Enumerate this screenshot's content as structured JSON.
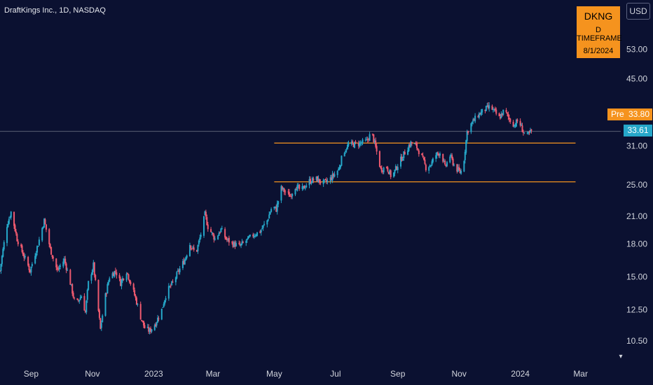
{
  "header": {
    "title": "DraftKings Inc., 1D, NASDAQ"
  },
  "ticker_box": {
    "symbol": "DKNG",
    "timeframe": "D TIMEFRAME",
    "date": "8/1/2024"
  },
  "currency_button": "USD",
  "price_labels": {
    "pre_label": "Pre",
    "pre_value": "33.80",
    "last_value": "33.61"
  },
  "colors": {
    "background": "#0b1131",
    "up": "#26a7c9",
    "down": "#ef5a6f",
    "level": "#f5931e",
    "accent": "#f5931e"
  },
  "chart_data": {
    "type": "candlestick",
    "y_scale": "log",
    "ylim": [
      9.8,
      62
    ],
    "y_ticks": [
      "53.00",
      "45.00",
      "31.00",
      "25.00",
      "21.00",
      "18.00",
      "15.00",
      "12.50",
      "10.50"
    ],
    "x_ticks": [
      "Sep",
      "Nov",
      "2023",
      "Mar",
      "May",
      "Jul",
      "Sep",
      "Nov",
      "2024",
      "Mar"
    ],
    "x_range": [
      "2022-08-01",
      "2024-04-10"
    ],
    "horizontal_levels": [
      {
        "value": 31.5,
        "from": "2023-05-01",
        "to": "2024-02-25"
      },
      {
        "value": 25.4,
        "from": "2023-05-01",
        "to": "2024-02-25"
      }
    ],
    "pre_market_price": 33.8,
    "last_price": 33.61,
    "price_path": [
      [
        "2022-08-01",
        15.5
      ],
      [
        "2022-08-08",
        20
      ],
      [
        "2022-08-12",
        21.5
      ],
      [
        "2022-08-18",
        18.5
      ],
      [
        "2022-08-24",
        17
      ],
      [
        "2022-08-31",
        15.5
      ],
      [
        "2022-09-08",
        18
      ],
      [
        "2022-09-14",
        20.5
      ],
      [
        "2022-09-20",
        17.5
      ],
      [
        "2022-09-27",
        15.5
      ],
      [
        "2022-10-04",
        16.5
      ],
      [
        "2022-10-10",
        14.5
      ],
      [
        "2022-10-15",
        12.8
      ],
      [
        "2022-10-21",
        13.5
      ],
      [
        "2022-10-25",
        12.3
      ],
      [
        "2022-10-28",
        14.5
      ],
      [
        "2022-11-02",
        16
      ],
      [
        "2022-11-06",
        13
      ],
      [
        "2022-11-09",
        11.2
      ],
      [
        "2022-11-14",
        13.5
      ],
      [
        "2022-11-18",
        15
      ],
      [
        "2022-11-24",
        15.5
      ],
      [
        "2022-11-29",
        14.5
      ],
      [
        "2022-12-05",
        15.5
      ],
      [
        "2022-12-09",
        14.5
      ],
      [
        "2022-12-14",
        13.3
      ],
      [
        "2022-12-19",
        12
      ],
      [
        "2022-12-23",
        11.3
      ],
      [
        "2022-12-28",
        11.1
      ],
      [
        "2023-01-03",
        11.6
      ],
      [
        "2023-01-09",
        12.5
      ],
      [
        "2023-01-14",
        13.8
      ],
      [
        "2023-01-20",
        14.5
      ],
      [
        "2023-01-26",
        15.5
      ],
      [
        "2023-02-01",
        16.5
      ],
      [
        "2023-02-06",
        18
      ],
      [
        "2023-02-12",
        17
      ],
      [
        "2023-02-17",
        19
      ],
      [
        "2023-02-21",
        21.2
      ],
      [
        "2023-02-24",
        19.8
      ],
      [
        "2023-03-03",
        18.5
      ],
      [
        "2023-03-09",
        19.5
      ],
      [
        "2023-03-14",
        18.5
      ],
      [
        "2023-03-21",
        18
      ],
      [
        "2023-03-28",
        17.8
      ],
      [
        "2023-04-03",
        18.3
      ],
      [
        "2023-04-10",
        18.9
      ],
      [
        "2023-04-17",
        19.3
      ],
      [
        "2023-04-24",
        20.5
      ],
      [
        "2023-04-29",
        22.2
      ],
      [
        "2023-05-03",
        21.8
      ],
      [
        "2023-05-08",
        24.5
      ],
      [
        "2023-05-12",
        24
      ],
      [
        "2023-05-17",
        23.5
      ],
      [
        "2023-05-22",
        24.8
      ],
      [
        "2023-05-28",
        24.2
      ],
      [
        "2023-06-05",
        25.5
      ],
      [
        "2023-06-12",
        25.8
      ],
      [
        "2023-06-18",
        25.2
      ],
      [
        "2023-06-24",
        25.5
      ],
      [
        "2023-06-30",
        26.5
      ],
      [
        "2023-07-04",
        27.2
      ],
      [
        "2023-07-09",
        30
      ],
      [
        "2023-07-14",
        31.2
      ],
      [
        "2023-07-21",
        31.3
      ],
      [
        "2023-07-26",
        31.5
      ],
      [
        "2023-08-01",
        31.8
      ],
      [
        "2023-08-06",
        33.5
      ],
      [
        "2023-08-11",
        30
      ],
      [
        "2023-08-15",
        27.2
      ],
      [
        "2023-08-21",
        27.6
      ],
      [
        "2023-08-26",
        26
      ],
      [
        "2023-08-31",
        27.6
      ],
      [
        "2023-09-05",
        29
      ],
      [
        "2023-09-10",
        30.5
      ],
      [
        "2023-09-14",
        31.5
      ],
      [
        "2023-09-19",
        31.1
      ],
      [
        "2023-09-24",
        29.5
      ],
      [
        "2023-09-29",
        27.5
      ],
      [
        "2023-10-04",
        28
      ],
      [
        "2023-10-09",
        29.5
      ],
      [
        "2023-10-14",
        30
      ],
      [
        "2023-10-18",
        27.5
      ],
      [
        "2023-10-23",
        29.4
      ],
      [
        "2023-10-28",
        27.5
      ],
      [
        "2023-11-02",
        26.8
      ],
      [
        "2023-11-05",
        27.3
      ],
      [
        "2023-11-09",
        33.5
      ],
      [
        "2023-11-13",
        35
      ],
      [
        "2023-11-20",
        36.8
      ],
      [
        "2023-11-27",
        38
      ],
      [
        "2023-12-02",
        38.5
      ],
      [
        "2023-12-07",
        37.3
      ],
      [
        "2023-12-11",
        36.2
      ],
      [
        "2023-12-16",
        37.8
      ],
      [
        "2023-12-21",
        36
      ],
      [
        "2023-12-26",
        34.8
      ],
      [
        "2023-12-30",
        35.8
      ],
      [
        "2024-01-04",
        33.5
      ],
      [
        "2024-01-08",
        32.8
      ],
      [
        "2024-01-12",
        33.61
      ]
    ]
  }
}
